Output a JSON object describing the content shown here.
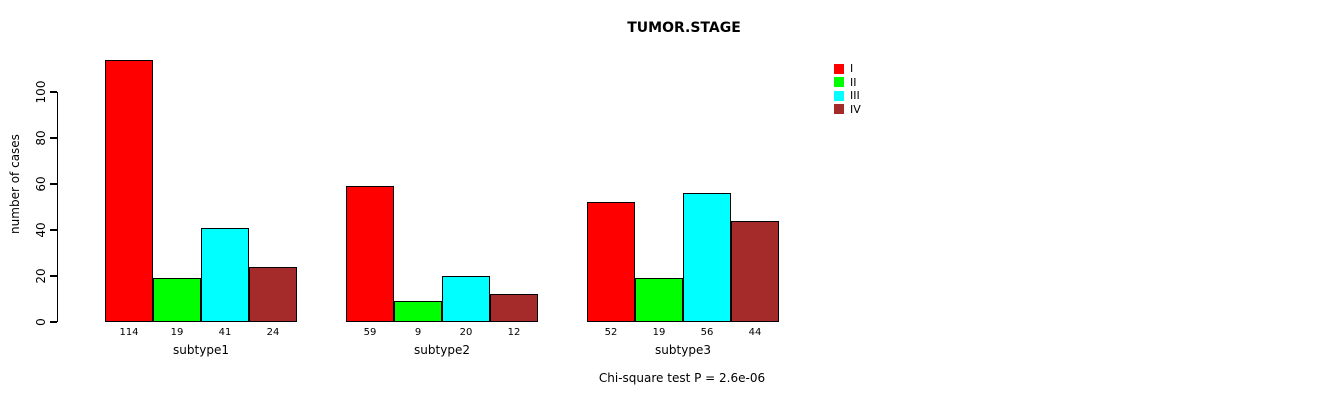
{
  "chart_data": {
    "type": "bar",
    "title": "TUMOR.STAGE",
    "ylabel": "number of cases",
    "xlabel": "",
    "categories": [
      "subtype1",
      "subtype2",
      "subtype3"
    ],
    "series": [
      {
        "name": "I",
        "color": "#FF0000",
        "values": [
          114,
          59,
          52
        ]
      },
      {
        "name": "II",
        "color": "#00FF00",
        "values": [
          19,
          9,
          19
        ]
      },
      {
        "name": "III",
        "color": "#00FFFF",
        "values": [
          41,
          20,
          56
        ]
      },
      {
        "name": "IV",
        "color": "#A52A2A",
        "values": [
          24,
          12,
          44
        ]
      }
    ],
    "bar_value_labels": [
      [
        "114",
        "19",
        "41",
        "24"
      ],
      [
        "59",
        "9",
        "20",
        "12"
      ],
      [
        "52",
        "19",
        "56",
        "44"
      ]
    ],
    "yticks": [
      0,
      20,
      40,
      60,
      80,
      100
    ],
    "ylim": [
      0,
      115
    ],
    "grid": false,
    "legend_position": "top-right",
    "legend_labels": [
      "I",
      "II",
      "III",
      "IV"
    ],
    "annotation": "Chi-square test P = 2.6e-06",
    "background_color": "#FFFFFF",
    "axis_color": "#000000"
  }
}
